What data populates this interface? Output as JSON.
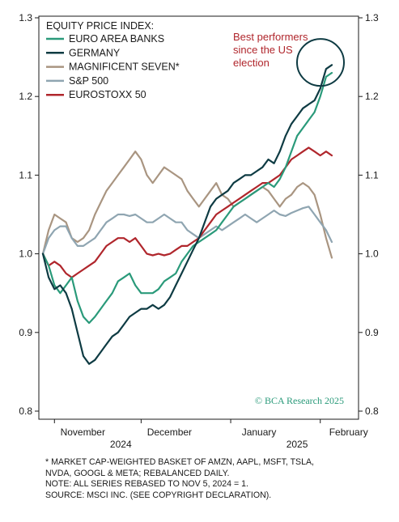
{
  "chart_data": {
    "type": "line",
    "title": "EQUITY PRICE INDEX:",
    "ylim": [
      0.8,
      1.3
    ],
    "yticks": [
      "0.8",
      "0.9",
      "1.0",
      "1.1",
      "1.2",
      "1.3"
    ],
    "x_ticks": [
      {
        "label": "November",
        "year": "2024",
        "day": 4
      },
      {
        "label": "December",
        "year": "",
        "day": 34
      },
      {
        "label": "January",
        "year": "2025",
        "day": 65
      },
      {
        "label": "February",
        "year": "",
        "day": 96
      }
    ],
    "x_start": "2024-11-05",
    "x_end": "2025-02-20",
    "legend_position": "top-left",
    "grid": false,
    "annotation": {
      "text": [
        "Best performers",
        "since the US",
        "election"
      ],
      "color": "#b0262c"
    },
    "credit": "© BCA Research 2025",
    "series": [
      {
        "name": "EURO AREA BANKS",
        "color": "#2a9a7a",
        "points": [
          [
            0,
            1.0
          ],
          [
            2,
            0.985
          ],
          [
            4,
            0.96
          ],
          [
            6,
            0.95
          ],
          [
            8,
            0.96
          ],
          [
            10,
            0.97
          ],
          [
            12,
            0.94
          ],
          [
            14,
            0.92
          ],
          [
            16,
            0.912
          ],
          [
            18,
            0.92
          ],
          [
            20,
            0.93
          ],
          [
            22,
            0.94
          ],
          [
            24,
            0.95
          ],
          [
            26,
            0.965
          ],
          [
            28,
            0.97
          ],
          [
            30,
            0.975
          ],
          [
            32,
            0.96
          ],
          [
            34,
            0.95
          ],
          [
            36,
            0.95
          ],
          [
            38,
            0.95
          ],
          [
            40,
            0.955
          ],
          [
            42,
            0.965
          ],
          [
            44,
            0.97
          ],
          [
            46,
            0.975
          ],
          [
            48,
            0.99
          ],
          [
            50,
            1.0
          ],
          [
            52,
            1.01
          ],
          [
            54,
            1.015
          ],
          [
            56,
            1.02
          ],
          [
            58,
            1.025
          ],
          [
            60,
            1.03
          ],
          [
            62,
            1.04
          ],
          [
            64,
            1.05
          ],
          [
            66,
            1.06
          ],
          [
            68,
            1.065
          ],
          [
            70,
            1.07
          ],
          [
            72,
            1.075
          ],
          [
            74,
            1.08
          ],
          [
            76,
            1.085
          ],
          [
            78,
            1.09
          ],
          [
            80,
            1.085
          ],
          [
            82,
            1.095
          ],
          [
            84,
            1.11
          ],
          [
            86,
            1.13
          ],
          [
            88,
            1.15
          ],
          [
            90,
            1.16
          ],
          [
            92,
            1.17
          ],
          [
            94,
            1.18
          ],
          [
            96,
            1.2
          ],
          [
            98,
            1.225
          ],
          [
            100,
            1.23
          ]
        ]
      },
      {
        "name": "GERMANY",
        "color": "#0e3b43",
        "points": [
          [
            0,
            1.0
          ],
          [
            2,
            0.97
          ],
          [
            4,
            0.955
          ],
          [
            6,
            0.96
          ],
          [
            8,
            0.95
          ],
          [
            10,
            0.93
          ],
          [
            12,
            0.9
          ],
          [
            14,
            0.87
          ],
          [
            16,
            0.86
          ],
          [
            18,
            0.865
          ],
          [
            20,
            0.875
          ],
          [
            22,
            0.885
          ],
          [
            24,
            0.895
          ],
          [
            26,
            0.9
          ],
          [
            28,
            0.91
          ],
          [
            30,
            0.92
          ],
          [
            32,
            0.925
          ],
          [
            34,
            0.93
          ],
          [
            36,
            0.93
          ],
          [
            38,
            0.935
          ],
          [
            40,
            0.93
          ],
          [
            42,
            0.935
          ],
          [
            44,
            0.945
          ],
          [
            46,
            0.96
          ],
          [
            48,
            0.975
          ],
          [
            50,
            0.99
          ],
          [
            52,
            1.005
          ],
          [
            54,
            1.02
          ],
          [
            56,
            1.04
          ],
          [
            58,
            1.06
          ],
          [
            60,
            1.07
          ],
          [
            62,
            1.075
          ],
          [
            64,
            1.08
          ],
          [
            66,
            1.09
          ],
          [
            68,
            1.095
          ],
          [
            70,
            1.1
          ],
          [
            72,
            1.1
          ],
          [
            74,
            1.105
          ],
          [
            76,
            1.11
          ],
          [
            78,
            1.12
          ],
          [
            80,
            1.115
          ],
          [
            82,
            1.13
          ],
          [
            84,
            1.15
          ],
          [
            86,
            1.165
          ],
          [
            88,
            1.175
          ],
          [
            90,
            1.185
          ],
          [
            92,
            1.19
          ],
          [
            94,
            1.195
          ],
          [
            96,
            1.21
          ],
          [
            98,
            1.235
          ],
          [
            100,
            1.24
          ]
        ]
      },
      {
        "name": "MAGNIFICENT SEVEN*",
        "color": "#a99581",
        "points": [
          [
            0,
            1.0
          ],
          [
            2,
            1.03
          ],
          [
            4,
            1.05
          ],
          [
            6,
            1.045
          ],
          [
            8,
            1.04
          ],
          [
            10,
            1.02
          ],
          [
            12,
            1.015
          ],
          [
            14,
            1.02
          ],
          [
            16,
            1.03
          ],
          [
            18,
            1.05
          ],
          [
            20,
            1.065
          ],
          [
            22,
            1.08
          ],
          [
            24,
            1.09
          ],
          [
            26,
            1.1
          ],
          [
            28,
            1.11
          ],
          [
            30,
            1.12
          ],
          [
            32,
            1.13
          ],
          [
            34,
            1.12
          ],
          [
            36,
            1.1
          ],
          [
            38,
            1.09
          ],
          [
            40,
            1.1
          ],
          [
            42,
            1.11
          ],
          [
            44,
            1.105
          ],
          [
            46,
            1.1
          ],
          [
            48,
            1.095
          ],
          [
            50,
            1.08
          ],
          [
            52,
            1.07
          ],
          [
            54,
            1.06
          ],
          [
            56,
            1.07
          ],
          [
            58,
            1.08
          ],
          [
            60,
            1.09
          ],
          [
            62,
            1.075
          ],
          [
            64,
            1.07
          ],
          [
            66,
            1.06
          ],
          [
            68,
            1.065
          ],
          [
            70,
            1.07
          ],
          [
            72,
            1.075
          ],
          [
            74,
            1.08
          ],
          [
            76,
            1.085
          ],
          [
            78,
            1.08
          ],
          [
            80,
            1.07
          ],
          [
            82,
            1.06
          ],
          [
            84,
            1.07
          ],
          [
            86,
            1.075
          ],
          [
            88,
            1.085
          ],
          [
            90,
            1.09
          ],
          [
            92,
            1.085
          ],
          [
            94,
            1.075
          ],
          [
            96,
            1.05
          ],
          [
            98,
            1.02
          ],
          [
            100,
            0.995
          ]
        ]
      },
      {
        "name": "S&P 500",
        "color": "#8fa5b1",
        "points": [
          [
            0,
            1.0
          ],
          [
            2,
            1.02
          ],
          [
            4,
            1.03
          ],
          [
            6,
            1.035
          ],
          [
            8,
            1.035
          ],
          [
            10,
            1.02
          ],
          [
            12,
            1.01
          ],
          [
            14,
            1.01
          ],
          [
            16,
            1.015
          ],
          [
            18,
            1.02
          ],
          [
            20,
            1.03
          ],
          [
            22,
            1.04
          ],
          [
            24,
            1.045
          ],
          [
            26,
            1.05
          ],
          [
            28,
            1.05
          ],
          [
            30,
            1.048
          ],
          [
            32,
            1.05
          ],
          [
            34,
            1.045
          ],
          [
            36,
            1.04
          ],
          [
            38,
            1.04
          ],
          [
            40,
            1.045
          ],
          [
            42,
            1.05
          ],
          [
            44,
            1.045
          ],
          [
            46,
            1.04
          ],
          [
            48,
            1.04
          ],
          [
            50,
            1.03
          ],
          [
            52,
            1.025
          ],
          [
            54,
            1.02
          ],
          [
            56,
            1.025
          ],
          [
            58,
            1.03
          ],
          [
            60,
            1.035
          ],
          [
            62,
            1.03
          ],
          [
            64,
            1.035
          ],
          [
            66,
            1.04
          ],
          [
            68,
            1.045
          ],
          [
            70,
            1.05
          ],
          [
            72,
            1.045
          ],
          [
            74,
            1.04
          ],
          [
            76,
            1.045
          ],
          [
            78,
            1.05
          ],
          [
            80,
            1.055
          ],
          [
            82,
            1.05
          ],
          [
            84,
            1.048
          ],
          [
            86,
            1.052
          ],
          [
            88,
            1.055
          ],
          [
            90,
            1.058
          ],
          [
            92,
            1.06
          ],
          [
            94,
            1.05
          ],
          [
            96,
            1.04
          ],
          [
            98,
            1.03
          ],
          [
            100,
            1.015
          ]
        ]
      },
      {
        "name": "EUROSTOXX 50",
        "color": "#b0262c",
        "points": [
          [
            0,
            1.0
          ],
          [
            2,
            0.985
          ],
          [
            4,
            0.99
          ],
          [
            6,
            0.985
          ],
          [
            8,
            0.975
          ],
          [
            10,
            0.97
          ],
          [
            12,
            0.975
          ],
          [
            14,
            0.98
          ],
          [
            16,
            0.985
          ],
          [
            18,
            0.99
          ],
          [
            20,
            1.0
          ],
          [
            22,
            1.01
          ],
          [
            24,
            1.015
          ],
          [
            26,
            1.02
          ],
          [
            28,
            1.02
          ],
          [
            30,
            1.015
          ],
          [
            32,
            1.02
          ],
          [
            34,
            1.01
          ],
          [
            36,
            1.0
          ],
          [
            38,
            0.998
          ],
          [
            40,
            1.0
          ],
          [
            42,
            0.998
          ],
          [
            44,
            1.0
          ],
          [
            46,
            1.005
          ],
          [
            48,
            1.01
          ],
          [
            50,
            1.01
          ],
          [
            52,
            1.015
          ],
          [
            54,
            1.02
          ],
          [
            56,
            1.03
          ],
          [
            58,
            1.04
          ],
          [
            60,
            1.05
          ],
          [
            62,
            1.055
          ],
          [
            64,
            1.06
          ],
          [
            66,
            1.065
          ],
          [
            68,
            1.07
          ],
          [
            70,
            1.075
          ],
          [
            72,
            1.08
          ],
          [
            74,
            1.085
          ],
          [
            76,
            1.09
          ],
          [
            78,
            1.09
          ],
          [
            80,
            1.095
          ],
          [
            82,
            1.1
          ],
          [
            84,
            1.11
          ],
          [
            86,
            1.12
          ],
          [
            88,
            1.125
          ],
          [
            90,
            1.13
          ],
          [
            92,
            1.135
          ],
          [
            94,
            1.13
          ],
          [
            96,
            1.125
          ],
          [
            98,
            1.13
          ],
          [
            100,
            1.125
          ]
        ]
      }
    ]
  },
  "footnotes": [
    "* MARKET CAP-WEIGHTED BASKET OF AMZN, AAPL, MSFT, TSLA,",
    "NVDA, GOOGL & META; REBALANCED DAILY.",
    "NOTE: ALL SERIES REBASED TO NOV 5, 2024 = 1.",
    "SOURCE: MSCI INC. (SEE COPYRIGHT DECLARATION)."
  ]
}
